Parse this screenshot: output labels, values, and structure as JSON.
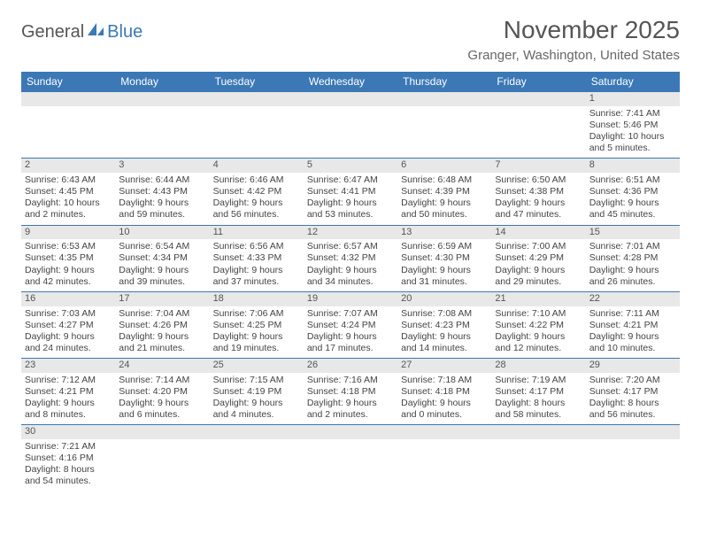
{
  "logo": {
    "part1": "General",
    "part2": "Blue"
  },
  "title": "November 2025",
  "location": "Granger, Washington, United States",
  "colors": {
    "header_bg": "#3b78b5",
    "header_text": "#ffffff",
    "daynum_bg": "#e8e8e8",
    "border": "#3b78b5",
    "body_text": "#444444",
    "title_text": "#555555"
  },
  "weekdays": [
    "Sunday",
    "Monday",
    "Tuesday",
    "Wednesday",
    "Thursday",
    "Friday",
    "Saturday"
  ],
  "weeks": [
    [
      null,
      null,
      null,
      null,
      null,
      null,
      {
        "n": "1",
        "sr": "Sunrise: 7:41 AM",
        "ss": "Sunset: 5:46 PM",
        "d1": "Daylight: 10 hours",
        "d2": "and 5 minutes."
      }
    ],
    [
      {
        "n": "2",
        "sr": "Sunrise: 6:43 AM",
        "ss": "Sunset: 4:45 PM",
        "d1": "Daylight: 10 hours",
        "d2": "and 2 minutes."
      },
      {
        "n": "3",
        "sr": "Sunrise: 6:44 AM",
        "ss": "Sunset: 4:43 PM",
        "d1": "Daylight: 9 hours",
        "d2": "and 59 minutes."
      },
      {
        "n": "4",
        "sr": "Sunrise: 6:46 AM",
        "ss": "Sunset: 4:42 PM",
        "d1": "Daylight: 9 hours",
        "d2": "and 56 minutes."
      },
      {
        "n": "5",
        "sr": "Sunrise: 6:47 AM",
        "ss": "Sunset: 4:41 PM",
        "d1": "Daylight: 9 hours",
        "d2": "and 53 minutes."
      },
      {
        "n": "6",
        "sr": "Sunrise: 6:48 AM",
        "ss": "Sunset: 4:39 PM",
        "d1": "Daylight: 9 hours",
        "d2": "and 50 minutes."
      },
      {
        "n": "7",
        "sr": "Sunrise: 6:50 AM",
        "ss": "Sunset: 4:38 PM",
        "d1": "Daylight: 9 hours",
        "d2": "and 47 minutes."
      },
      {
        "n": "8",
        "sr": "Sunrise: 6:51 AM",
        "ss": "Sunset: 4:36 PM",
        "d1": "Daylight: 9 hours",
        "d2": "and 45 minutes."
      }
    ],
    [
      {
        "n": "9",
        "sr": "Sunrise: 6:53 AM",
        "ss": "Sunset: 4:35 PM",
        "d1": "Daylight: 9 hours",
        "d2": "and 42 minutes."
      },
      {
        "n": "10",
        "sr": "Sunrise: 6:54 AM",
        "ss": "Sunset: 4:34 PM",
        "d1": "Daylight: 9 hours",
        "d2": "and 39 minutes."
      },
      {
        "n": "11",
        "sr": "Sunrise: 6:56 AM",
        "ss": "Sunset: 4:33 PM",
        "d1": "Daylight: 9 hours",
        "d2": "and 37 minutes."
      },
      {
        "n": "12",
        "sr": "Sunrise: 6:57 AM",
        "ss": "Sunset: 4:32 PM",
        "d1": "Daylight: 9 hours",
        "d2": "and 34 minutes."
      },
      {
        "n": "13",
        "sr": "Sunrise: 6:59 AM",
        "ss": "Sunset: 4:30 PM",
        "d1": "Daylight: 9 hours",
        "d2": "and 31 minutes."
      },
      {
        "n": "14",
        "sr": "Sunrise: 7:00 AM",
        "ss": "Sunset: 4:29 PM",
        "d1": "Daylight: 9 hours",
        "d2": "and 29 minutes."
      },
      {
        "n": "15",
        "sr": "Sunrise: 7:01 AM",
        "ss": "Sunset: 4:28 PM",
        "d1": "Daylight: 9 hours",
        "d2": "and 26 minutes."
      }
    ],
    [
      {
        "n": "16",
        "sr": "Sunrise: 7:03 AM",
        "ss": "Sunset: 4:27 PM",
        "d1": "Daylight: 9 hours",
        "d2": "and 24 minutes."
      },
      {
        "n": "17",
        "sr": "Sunrise: 7:04 AM",
        "ss": "Sunset: 4:26 PM",
        "d1": "Daylight: 9 hours",
        "d2": "and 21 minutes."
      },
      {
        "n": "18",
        "sr": "Sunrise: 7:06 AM",
        "ss": "Sunset: 4:25 PM",
        "d1": "Daylight: 9 hours",
        "d2": "and 19 minutes."
      },
      {
        "n": "19",
        "sr": "Sunrise: 7:07 AM",
        "ss": "Sunset: 4:24 PM",
        "d1": "Daylight: 9 hours",
        "d2": "and 17 minutes."
      },
      {
        "n": "20",
        "sr": "Sunrise: 7:08 AM",
        "ss": "Sunset: 4:23 PM",
        "d1": "Daylight: 9 hours",
        "d2": "and 14 minutes."
      },
      {
        "n": "21",
        "sr": "Sunrise: 7:10 AM",
        "ss": "Sunset: 4:22 PM",
        "d1": "Daylight: 9 hours",
        "d2": "and 12 minutes."
      },
      {
        "n": "22",
        "sr": "Sunrise: 7:11 AM",
        "ss": "Sunset: 4:21 PM",
        "d1": "Daylight: 9 hours",
        "d2": "and 10 minutes."
      }
    ],
    [
      {
        "n": "23",
        "sr": "Sunrise: 7:12 AM",
        "ss": "Sunset: 4:21 PM",
        "d1": "Daylight: 9 hours",
        "d2": "and 8 minutes."
      },
      {
        "n": "24",
        "sr": "Sunrise: 7:14 AM",
        "ss": "Sunset: 4:20 PM",
        "d1": "Daylight: 9 hours",
        "d2": "and 6 minutes."
      },
      {
        "n": "25",
        "sr": "Sunrise: 7:15 AM",
        "ss": "Sunset: 4:19 PM",
        "d1": "Daylight: 9 hours",
        "d2": "and 4 minutes."
      },
      {
        "n": "26",
        "sr": "Sunrise: 7:16 AM",
        "ss": "Sunset: 4:18 PM",
        "d1": "Daylight: 9 hours",
        "d2": "and 2 minutes."
      },
      {
        "n": "27",
        "sr": "Sunrise: 7:18 AM",
        "ss": "Sunset: 4:18 PM",
        "d1": "Daylight: 9 hours",
        "d2": "and 0 minutes."
      },
      {
        "n": "28",
        "sr": "Sunrise: 7:19 AM",
        "ss": "Sunset: 4:17 PM",
        "d1": "Daylight: 8 hours",
        "d2": "and 58 minutes."
      },
      {
        "n": "29",
        "sr": "Sunrise: 7:20 AM",
        "ss": "Sunset: 4:17 PM",
        "d1": "Daylight: 8 hours",
        "d2": "and 56 minutes."
      }
    ],
    [
      {
        "n": "30",
        "sr": "Sunrise: 7:21 AM",
        "ss": "Sunset: 4:16 PM",
        "d1": "Daylight: 8 hours",
        "d2": "and 54 minutes."
      },
      null,
      null,
      null,
      null,
      null,
      null
    ]
  ]
}
